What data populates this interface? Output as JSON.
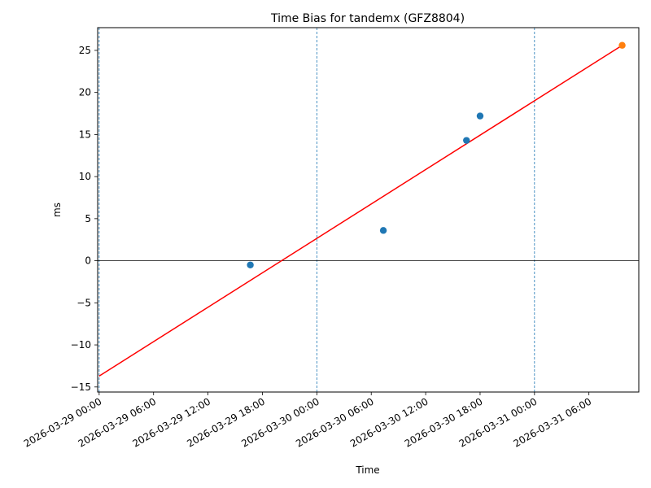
{
  "chart_data": {
    "type": "scatter",
    "title": "Time Bias for tandemx (GFZ8804)",
    "xlabel": "Time",
    "ylabel": "ms",
    "xlim": [
      "2026-03-28 23:50",
      "2026-03-31 11:30"
    ],
    "ylim": [
      -15.6,
      27.7
    ],
    "x_ticks": [
      "2026-03-29 00:00",
      "2026-03-29 06:00",
      "2026-03-29 12:00",
      "2026-03-29 18:00",
      "2026-03-30 00:00",
      "2026-03-30 06:00",
      "2026-03-30 12:00",
      "2026-03-30 18:00",
      "2026-03-31 00:00",
      "2026-03-31 06:00"
    ],
    "y_ticks": [
      -15,
      -10,
      -5,
      0,
      5,
      10,
      15,
      20,
      25
    ],
    "y_tick_labels": [
      "−15",
      "−10",
      "−5",
      "0",
      "5",
      "10",
      "15",
      "20",
      "25"
    ],
    "vertical_reference_lines": [
      "2026-03-29 00:00",
      "2026-03-30 00:00",
      "2026-03-31 00:00"
    ],
    "horizontal_reference_line": 0,
    "series": [
      {
        "kind": "scatter",
        "color": "#1f77b4",
        "points": [
          {
            "x": "2026-03-29 16:40",
            "y": -0.5
          },
          {
            "x": "2026-03-30 07:20",
            "y": 3.6
          },
          {
            "x": "2026-03-30 16:30",
            "y": 14.3
          },
          {
            "x": "2026-03-30 18:00",
            "y": 17.2
          }
        ]
      },
      {
        "kind": "scatter",
        "color": "#ff7f0e",
        "points": [
          {
            "x": "2026-03-31 09:40",
            "y": 25.6
          }
        ]
      },
      {
        "kind": "line",
        "color": "#ff0000",
        "points": [
          {
            "x": "2026-03-29 00:00",
            "y": -13.7
          },
          {
            "x": "2026-03-31 09:40",
            "y": 25.6
          }
        ]
      }
    ],
    "grid": false,
    "legend": "none"
  }
}
